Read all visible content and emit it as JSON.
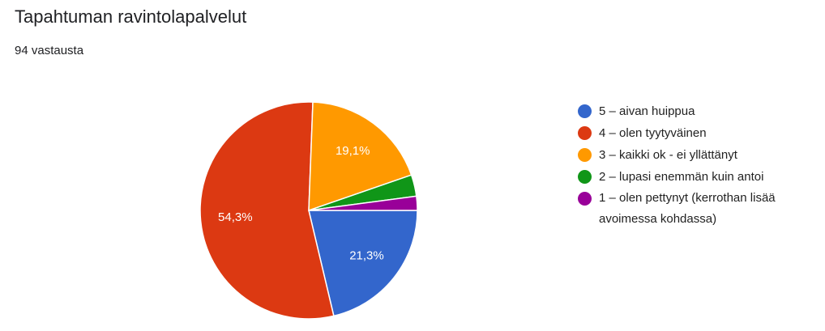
{
  "chart_data": {
    "type": "pie",
    "title": "Tapahtuman ravintolapalvelut",
    "subtitle": "94 vastausta",
    "categories": [
      "5 – aivan huippua",
      "4 – olen tyytyväinen",
      "3 – kaikki ok - ei yllättänyt",
      "2 – lupasi enemmän kuin antoi",
      "1 – olen pettynyt (kerrothan lisää avoimessa kohdassa)"
    ],
    "values": [
      21.3,
      54.3,
      19.1,
      3.2,
      2.1
    ],
    "value_labels": [
      "21,3%",
      "54,3%",
      "19,1%",
      null,
      null
    ],
    "colors": [
      "#3366cc",
      "#dc3912",
      "#ff9900",
      "#109618",
      "#990099"
    ],
    "legend": "right"
  }
}
